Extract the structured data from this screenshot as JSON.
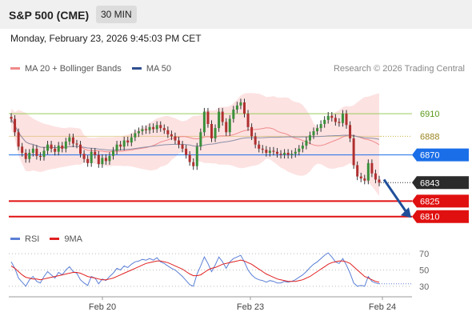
{
  "header": {
    "symbol": "S&P 500 (CME)",
    "timeframe": "30 MIN",
    "datetime": "Monday, February 23, 2026 9:45:03 PM CET"
  },
  "legend": {
    "ma20_label": "MA 20 + Bollinger Bands",
    "ma20_color": "#f08a8a",
    "ma50_label": "MA 50",
    "ma50_color": "#2f4f8f",
    "copyright": "Research © 2026 Trading Central"
  },
  "rsi_legend": {
    "rsi_label": "RSI",
    "rsi_color": "#5b7fd6",
    "ma9_label": "9MA",
    "ma9_color": "#e02020"
  },
  "chart_data": [
    {
      "type": "candlestick",
      "title": "",
      "x_ticks": [
        "Feb 20",
        "Feb 23",
        "Feb 24"
      ],
      "ylim": [
        6795,
        6935
      ],
      "levels": [
        {
          "value": 6910,
          "label": "6910",
          "color": "#9acd5a",
          "style": "line",
          "tag": false
        },
        {
          "value": 6888,
          "label": "6888",
          "color": "#c8b040",
          "style": "dotted",
          "tag": false
        },
        {
          "value": 6870,
          "label": "6870",
          "color": "#1a6ee8",
          "style": "line",
          "tag": true
        },
        {
          "value": 6843,
          "label": "6843",
          "color": "#2b2b2b",
          "style": "dotted",
          "tag": true
        },
        {
          "value": 6825,
          "label": "6825",
          "color": "#e01010",
          "style": "thick",
          "tag": true
        },
        {
          "value": 6810,
          "label": "6810",
          "color": "#e01010",
          "style": "thick",
          "tag": true
        }
      ],
      "closes": [
        6905,
        6892,
        6878,
        6872,
        6866,
        6872,
        6876,
        6869,
        6868,
        6874,
        6880,
        6876,
        6873,
        6879,
        6876,
        6883,
        6887,
        6881,
        6880,
        6871,
        6866,
        6862,
        6873,
        6870,
        6861,
        6867,
        6864,
        6869,
        6874,
        6880,
        6878,
        6884,
        6882,
        6887,
        6891,
        6893,
        6895,
        6894,
        6897,
        6895,
        6899,
        6896,
        6894,
        6890,
        6888,
        6884,
        6880,
        6876,
        6870,
        6863,
        6859,
        6878,
        6892,
        6912,
        6900,
        6886,
        6896,
        6912,
        6902,
        6892,
        6905,
        6914,
        6918,
        6921,
        6910,
        6897,
        6888,
        6880,
        6876,
        6875,
        6872,
        6874,
        6873,
        6871,
        6870,
        6872,
        6870,
        6871,
        6873,
        6876,
        6879,
        6884,
        6889,
        6893,
        6896,
        6900,
        6904,
        6908,
        6906,
        6902,
        6901,
        6910,
        6899,
        6886,
        6860,
        6849,
        6847,
        6845,
        6862,
        6852,
        6846,
        6843
      ],
      "candle_range": 6,
      "annotation_arrow": {
        "from": 6846,
        "to": 6812
      }
    },
    {
      "type": "line",
      "title": "",
      "ylim": [
        20,
        75
      ],
      "y_ticks": [
        70,
        50,
        30
      ],
      "series": [
        {
          "name": "RSI",
          "color": "#5b7fd6",
          "values": [
            60,
            52,
            40,
            35,
            30,
            38,
            42,
            36,
            34,
            42,
            48,
            44,
            40,
            47,
            44,
            50,
            54,
            48,
            46,
            38,
            34,
            31,
            42,
            40,
            33,
            39,
            37,
            42,
            46,
            52,
            50,
            55,
            53,
            57,
            60,
            61,
            63,
            62,
            64,
            62,
            65,
            60,
            58,
            55,
            52,
            50,
            46,
            42,
            37,
            32,
            30,
            45,
            55,
            66,
            58,
            48,
            56,
            66,
            60,
            52,
            60,
            64,
            66,
            68,
            60,
            50,
            44,
            40,
            38,
            37,
            35,
            37,
            36,
            34,
            34,
            36,
            35,
            36,
            38,
            41,
            44,
            48,
            53,
            57,
            60,
            64,
            68,
            71,
            66,
            60,
            58,
            64,
            56,
            46,
            34,
            30,
            31,
            30,
            42,
            36,
            34,
            33
          ]
        },
        {
          "name": "9MA",
          "color": "#e02020",
          "values": [
            55,
            52,
            48,
            44,
            41,
            40,
            39,
            39,
            38,
            39,
            40,
            41,
            42,
            43,
            44,
            45,
            46,
            47,
            47,
            46,
            44,
            42,
            41,
            40,
            39,
            38,
            38,
            39,
            40,
            42,
            44,
            46,
            48,
            50,
            52,
            54,
            56,
            58,
            59,
            60,
            61,
            61,
            60,
            59,
            57,
            55,
            53,
            51,
            48,
            45,
            43,
            43,
            44,
            47,
            50,
            52,
            53,
            55,
            57,
            58,
            59,
            60,
            61,
            62,
            61,
            59,
            57,
            54,
            51,
            48,
            45,
            43,
            41,
            39,
            38,
            37,
            36,
            36,
            36,
            37,
            38,
            40,
            42,
            45,
            48,
            51,
            54,
            57,
            59,
            60,
            61,
            61,
            60,
            58,
            54,
            50,
            46,
            42,
            40,
            38,
            36,
            35
          ]
        }
      ]
    }
  ]
}
